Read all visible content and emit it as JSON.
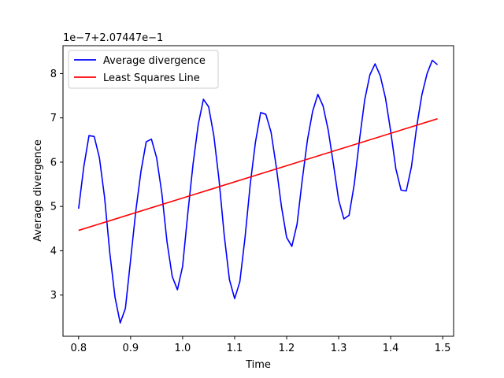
{
  "chart_data": {
    "type": "line",
    "xlabel": "Time",
    "ylabel": "Average divergence",
    "y_offset_text": "1e−7+2.07447e−1",
    "xlim": [
      0.77,
      1.521
    ],
    "ylim": [
      2.07,
      8.63
    ],
    "x_ticks": [
      0.8,
      0.9,
      1.0,
      1.1,
      1.2,
      1.3,
      1.4,
      1.5
    ],
    "x_tick_labels": [
      "0.8",
      "0.9",
      "1.0",
      "1.1",
      "1.2",
      "1.3",
      "1.4",
      "1.5"
    ],
    "y_ticks": [
      3,
      4,
      5,
      6,
      7,
      8
    ],
    "y_tick_labels": [
      "3",
      "4",
      "5",
      "6",
      "7",
      "8"
    ],
    "legend_position": "top-left",
    "grid": false,
    "series": [
      {
        "name": "Average divergence",
        "color": "#0000ff",
        "x": [
          0.8,
          0.81,
          0.82,
          0.83,
          0.84,
          0.85,
          0.86,
          0.87,
          0.88,
          0.89,
          0.9,
          0.91,
          0.92,
          0.93,
          0.94,
          0.95,
          0.96,
          0.97,
          0.98,
          0.99,
          1.0,
          1.01,
          1.02,
          1.03,
          1.04,
          1.05,
          1.06,
          1.07,
          1.08,
          1.09,
          1.1,
          1.11,
          1.12,
          1.13,
          1.14,
          1.15,
          1.16,
          1.17,
          1.18,
          1.19,
          1.2,
          1.21,
          1.22,
          1.23,
          1.24,
          1.25,
          1.26,
          1.27,
          1.28,
          1.29,
          1.3,
          1.31,
          1.32,
          1.33,
          1.34,
          1.35,
          1.36,
          1.37,
          1.38,
          1.39,
          1.4,
          1.41,
          1.42,
          1.43,
          1.44,
          1.45,
          1.46,
          1.47,
          1.48,
          1.49
        ],
        "y": [
          4.95,
          5.9,
          6.6,
          6.58,
          6.1,
          5.2,
          3.95,
          2.95,
          2.37,
          2.7,
          3.8,
          4.9,
          5.8,
          6.46,
          6.52,
          6.1,
          5.3,
          4.2,
          3.42,
          3.12,
          3.65,
          4.85,
          5.95,
          6.85,
          7.42,
          7.25,
          6.6,
          5.6,
          4.35,
          3.35,
          2.92,
          3.3,
          4.3,
          5.5,
          6.45,
          7.12,
          7.08,
          6.68,
          5.9,
          5.0,
          4.3,
          4.1,
          4.6,
          5.6,
          6.5,
          7.15,
          7.53,
          7.27,
          6.72,
          5.95,
          5.15,
          4.72,
          4.8,
          5.5,
          6.5,
          7.4,
          7.97,
          8.22,
          7.95,
          7.45,
          6.7,
          5.85,
          5.37,
          5.35,
          5.9,
          6.8,
          7.52,
          8.0,
          8.3,
          8.2
        ]
      },
      {
        "name": "Least Squares Line",
        "color": "#ff0000",
        "x": [
          0.8,
          1.49
        ],
        "y": [
          4.46,
          6.98
        ]
      }
    ]
  }
}
